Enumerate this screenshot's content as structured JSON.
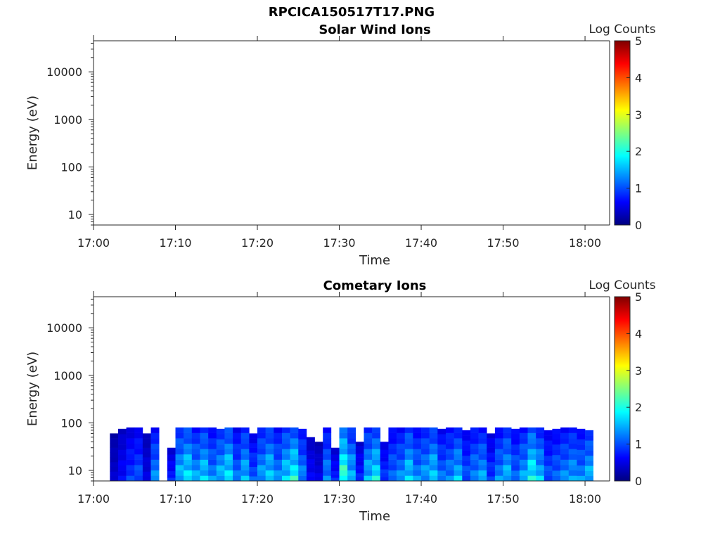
{
  "figure": {
    "title": "RPCICA150517T17.PNG"
  },
  "colormap_stops": [
    "#00007f",
    "#0000ff",
    "#007fff",
    "#00ffff",
    "#7fff7f",
    "#ffff00",
    "#ff7f00",
    "#ff0000",
    "#7f0000"
  ],
  "chart_data": [
    {
      "type": "heatmap",
      "title": "Solar Wind Ions",
      "xlabel": "Time",
      "ylabel": "Energy (eV)",
      "yscale": "log",
      "xlim": [
        "17:00",
        "18:03"
      ],
      "ylim": [
        6,
        45000
      ],
      "x_ticks": [
        "17:00",
        "17:10",
        "17:20",
        "17:30",
        "17:40",
        "17:50",
        "18:00"
      ],
      "y_ticks": [
        10,
        100,
        1000,
        10000
      ],
      "y_tick_labels": [
        "10",
        "100",
        "1000",
        "10000"
      ],
      "colorbar": {
        "label": "Log Counts",
        "range": [
          0,
          5
        ],
        "ticks": [
          "0",
          "1",
          "2",
          "3",
          "4",
          "5"
        ]
      },
      "columns": []
    },
    {
      "type": "heatmap",
      "title": "Cometary Ions",
      "xlabel": "Time",
      "ylabel": "Energy (eV)",
      "yscale": "log",
      "xlim": [
        "17:00",
        "18:03"
      ],
      "ylim": [
        6,
        45000
      ],
      "x_ticks": [
        "17:00",
        "17:10",
        "17:20",
        "17:30",
        "17:40",
        "17:50",
        "18:00"
      ],
      "y_ticks": [
        10,
        100,
        1000,
        10000
      ],
      "y_tick_labels": [
        "10",
        "100",
        "1000",
        "10000"
      ],
      "colorbar": {
        "label": "Log Counts",
        "range": [
          0,
          5
        ],
        "ticks": [
          "0",
          "1",
          "2",
          "3",
          "4",
          "5"
        ]
      },
      "columns": [
        {
          "t": "17:02",
          "lc": 0.3,
          "top": 60
        },
        {
          "t": "17:03",
          "lc": 0.5,
          "top": 75
        },
        {
          "t": "17:04",
          "lc": 0.7,
          "top": 80
        },
        {
          "t": "17:05",
          "lc": 0.8,
          "top": 80
        },
        {
          "t": "17:06",
          "lc": 0.4,
          "top": 60
        },
        {
          "t": "17:07",
          "lc": 1.0,
          "top": 80
        },
        {
          "t": "17:08",
          "lc": 0.2,
          "top": 0
        },
        {
          "t": "17:09",
          "lc": 0.6,
          "top": 30
        },
        {
          "t": "17:10",
          "lc": 1.2,
          "top": 80
        },
        {
          "t": "17:11",
          "lc": 1.4,
          "top": 80
        },
        {
          "t": "17:12",
          "lc": 1.1,
          "top": 80
        },
        {
          "t": "17:13",
          "lc": 1.3,
          "top": 80
        },
        {
          "t": "17:14",
          "lc": 1.0,
          "top": 80
        },
        {
          "t": "17:15",
          "lc": 1.2,
          "top": 75
        },
        {
          "t": "17:16",
          "lc": 1.4,
          "top": 80
        },
        {
          "t": "17:17",
          "lc": 0.9,
          "top": 80
        },
        {
          "t": "17:18",
          "lc": 1.2,
          "top": 80
        },
        {
          "t": "17:19",
          "lc": 0.8,
          "top": 60
        },
        {
          "t": "17:20",
          "lc": 1.1,
          "top": 80
        },
        {
          "t": "17:21",
          "lc": 1.3,
          "top": 80
        },
        {
          "t": "17:22",
          "lc": 1.0,
          "top": 80
        },
        {
          "t": "17:23",
          "lc": 1.3,
          "top": 80
        },
        {
          "t": "17:24",
          "lc": 1.5,
          "top": 80
        },
        {
          "t": "17:25",
          "lc": 1.0,
          "top": 75
        },
        {
          "t": "17:26",
          "lc": 0.5,
          "top": 50
        },
        {
          "t": "17:27",
          "lc": 0.4,
          "top": 40
        },
        {
          "t": "17:28",
          "lc": 1.0,
          "top": 80
        },
        {
          "t": "17:29",
          "lc": 0.6,
          "top": 30
        },
        {
          "t": "17:30",
          "lc": 1.7,
          "top": 80
        },
        {
          "t": "17:31",
          "lc": 1.2,
          "top": 80
        },
        {
          "t": "17:32",
          "lc": 0.6,
          "top": 40
        },
        {
          "t": "17:33",
          "lc": 1.2,
          "top": 80
        },
        {
          "t": "17:34",
          "lc": 1.4,
          "top": 80
        },
        {
          "t": "17:35",
          "lc": 0.7,
          "top": 40
        },
        {
          "t": "17:36",
          "lc": 0.9,
          "top": 80
        },
        {
          "t": "17:37",
          "lc": 1.0,
          "top": 80
        },
        {
          "t": "17:38",
          "lc": 1.3,
          "top": 80
        },
        {
          "t": "17:39",
          "lc": 1.0,
          "top": 80
        },
        {
          "t": "17:40",
          "lc": 1.1,
          "top": 80
        },
        {
          "t": "17:41",
          "lc": 1.3,
          "top": 80
        },
        {
          "t": "17:42",
          "lc": 0.9,
          "top": 75
        },
        {
          "t": "17:43",
          "lc": 1.0,
          "top": 80
        },
        {
          "t": "17:44",
          "lc": 1.2,
          "top": 80
        },
        {
          "t": "17:45",
          "lc": 0.8,
          "top": 70
        },
        {
          "t": "17:46",
          "lc": 1.0,
          "top": 80
        },
        {
          "t": "17:47",
          "lc": 1.1,
          "top": 80
        },
        {
          "t": "17:48",
          "lc": 0.7,
          "top": 60
        },
        {
          "t": "17:49",
          "lc": 1.0,
          "top": 80
        },
        {
          "t": "17:50",
          "lc": 1.2,
          "top": 80
        },
        {
          "t": "17:51",
          "lc": 0.9,
          "top": 75
        },
        {
          "t": "17:52",
          "lc": 1.1,
          "top": 80
        },
        {
          "t": "17:53",
          "lc": 1.5,
          "top": 80
        },
        {
          "t": "17:54",
          "lc": 1.2,
          "top": 80
        },
        {
          "t": "17:55",
          "lc": 0.8,
          "top": 70
        },
        {
          "t": "17:56",
          "lc": 0.9,
          "top": 75
        },
        {
          "t": "17:57",
          "lc": 1.0,
          "top": 80
        },
        {
          "t": "17:58",
          "lc": 1.1,
          "top": 80
        },
        {
          "t": "17:59",
          "lc": 1.0,
          "top": 75
        },
        {
          "t": "18:00",
          "lc": 1.2,
          "top": 70
        }
      ]
    }
  ]
}
